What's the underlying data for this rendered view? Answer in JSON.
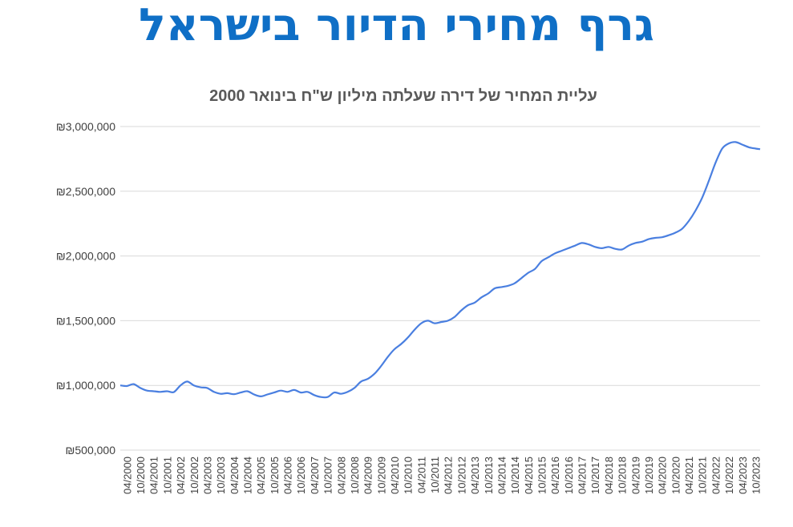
{
  "page": {
    "title": "גרף מחירי הדיור בישראל"
  },
  "chart_data": {
    "type": "line",
    "title": "עליית המחיר של דירה שעלתה מיליון ש\"ח בינואר 2000",
    "xlabel": "",
    "ylabel": "",
    "ylim": [
      500000,
      3000000
    ],
    "yticks": [
      500000,
      1000000,
      1500000,
      2000000,
      2500000,
      3000000
    ],
    "ytick_labels": [
      "₪500,000",
      "₪1,000,000",
      "₪1,500,000",
      "₪2,000,000",
      "₪2,500,000",
      "₪3,000,000"
    ],
    "grid": true,
    "legend": "none",
    "line_color": "#4a7fe0",
    "x_tick_labels": [
      "04/2000",
      "10/2000",
      "04/2001",
      "10/2001",
      "04/2002",
      "10/2002",
      "04/2003",
      "10/2003",
      "04/2004",
      "10/2004",
      "04/2005",
      "10/2005",
      "04/2006",
      "10/2006",
      "04/2007",
      "10/2007",
      "04/2008",
      "10/2008",
      "04/2009",
      "10/2009",
      "04/2010",
      "10/2010",
      "04/2011",
      "10/2011",
      "04/2012",
      "10/2012",
      "04/2013",
      "10/2013",
      "04/2014",
      "10/2014",
      "04/2015",
      "10/2015",
      "04/2016",
      "10/2016",
      "04/2017",
      "10/2017",
      "04/2018",
      "10/2018",
      "04/2019",
      "10/2019",
      "04/2020",
      "10/2020",
      "04/2021",
      "10/2021",
      "04/2022",
      "10/2022",
      "04/2023",
      "10/2023"
    ],
    "series": [
      {
        "x": [
          "01/2000",
          "04/2000",
          "07/2000",
          "10/2000",
          "01/2001",
          "04/2001",
          "07/2001",
          "10/2001",
          "01/2002",
          "04/2002",
          "07/2002",
          "10/2002",
          "01/2003",
          "04/2003",
          "07/2003",
          "10/2003",
          "01/2004",
          "04/2004",
          "07/2004",
          "10/2004",
          "01/2005",
          "04/2005",
          "07/2005",
          "10/2005",
          "01/2006",
          "04/2006",
          "07/2006",
          "10/2006",
          "01/2007",
          "04/2007",
          "07/2007",
          "10/2007",
          "01/2008",
          "04/2008",
          "07/2008",
          "10/2008",
          "01/2009",
          "04/2009",
          "07/2009",
          "10/2009",
          "01/2010",
          "04/2010",
          "07/2010",
          "10/2010",
          "01/2011",
          "04/2011",
          "07/2011",
          "10/2011",
          "01/2012",
          "04/2012",
          "07/2012",
          "10/2012",
          "01/2013",
          "04/2013",
          "07/2013",
          "10/2013",
          "01/2014",
          "04/2014",
          "07/2014",
          "10/2014",
          "01/2015",
          "04/2015",
          "07/2015",
          "10/2015",
          "01/2016",
          "04/2016",
          "07/2016",
          "10/2016",
          "01/2017",
          "04/2017",
          "07/2017",
          "10/2017",
          "01/2018",
          "04/2018",
          "07/2018",
          "10/2018",
          "01/2019",
          "04/2019",
          "07/2019",
          "10/2019",
          "01/2020",
          "04/2020",
          "07/2020",
          "10/2020",
          "01/2021",
          "04/2021",
          "07/2021",
          "10/2021",
          "01/2022",
          "04/2022",
          "07/2022",
          "10/2022",
          "01/2023",
          "04/2023",
          "07/2023",
          "10/2023",
          "12/2023"
        ],
        "values": [
          1000000,
          995000,
          1010000,
          980000,
          960000,
          955000,
          950000,
          955000,
          948000,
          1000000,
          1030000,
          1000000,
          985000,
          980000,
          950000,
          935000,
          940000,
          932000,
          945000,
          955000,
          930000,
          915000,
          930000,
          945000,
          960000,
          950000,
          965000,
          945000,
          950000,
          925000,
          910000,
          910000,
          945000,
          935000,
          950000,
          980000,
          1030000,
          1050000,
          1090000,
          1150000,
          1220000,
          1280000,
          1320000,
          1370000,
          1430000,
          1480000,
          1500000,
          1480000,
          1490000,
          1500000,
          1530000,
          1580000,
          1620000,
          1640000,
          1680000,
          1710000,
          1750000,
          1760000,
          1770000,
          1790000,
          1830000,
          1870000,
          1900000,
          1960000,
          1990000,
          2020000,
          2040000,
          2060000,
          2080000,
          2100000,
          2090000,
          2070000,
          2060000,
          2070000,
          2055000,
          2050000,
          2080000,
          2100000,
          2110000,
          2130000,
          2140000,
          2145000,
          2160000,
          2180000,
          2210000,
          2270000,
          2350000,
          2450000,
          2580000,
          2720000,
          2830000,
          2870000,
          2880000,
          2860000,
          2840000,
          2830000,
          2825000
        ]
      }
    ]
  }
}
